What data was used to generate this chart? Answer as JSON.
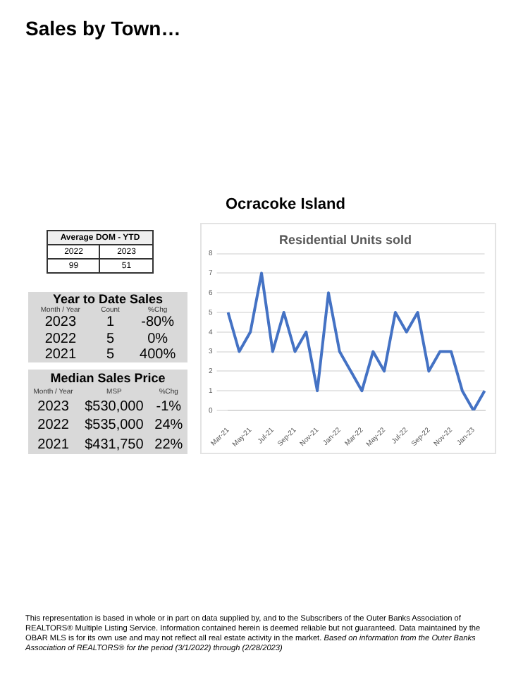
{
  "chart_data": [
    {
      "type": "other",
      "title": "Sales by Town…",
      "subtitle": "Ocracoke Island",
      "annotations": [
        "Average DOM - YTD",
        "2022",
        "2023",
        "99",
        "51",
        "Year to Date Sales",
        "Month / Year",
        "Count",
        "%Chg",
        "2023",
        "1",
        "-80%",
        "2022",
        "5",
        "0%",
        "2021",
        "5",
        "400%",
        "Median Sales Price",
        "Month / Year",
        "MSP",
        "%Chg",
        "2023",
        "$530,000",
        "-1%",
        "2022",
        "$535,000",
        "24%",
        "2021",
        "$431,750",
        "22%",
        "This representation is based in whole or in part on data supplied by, and to the Subscribers of the Outer Banks Association of REALTORS® Multiple Listing Service. Information contained herein is deemed reliable but not guaranteed. Data maintained by the OBAR MLS is for its own use and may not reflect all real estate activity in the market.",
        "Based on information from the Outer Banks Association of REALTORS® for the period (3/1/2022) through (2/28/2023)"
      ]
    },
    {
      "type": "line",
      "title": "Residential Units sold",
      "categories": [
        "Mar-21",
        null,
        "May-21",
        null,
        "Jul-21",
        null,
        "Sep-21",
        null,
        "Nov-21",
        null,
        "Jan-22",
        null,
        "Mar-22",
        null,
        "May-22",
        null,
        "Jul-22",
        null,
        "Sep-22",
        null,
        "Nov-22",
        null,
        "Jan-23",
        null
      ],
      "series": [
        {
          "color": "#4472c4",
          "values": [
            5,
            3,
            4,
            7,
            3,
            5,
            3,
            4,
            1,
            6,
            3,
            2,
            1,
            3,
            2,
            5,
            4,
            5,
            2,
            3,
            3,
            1,
            0,
            1
          ]
        }
      ],
      "ylim": [
        0,
        8
      ],
      "yticks": [
        0,
        1,
        2,
        3,
        4,
        5,
        6,
        7,
        8
      ],
      "grid": "y",
      "legend": false,
      "marker": "none",
      "line_style": "solid"
    }
  ]
}
